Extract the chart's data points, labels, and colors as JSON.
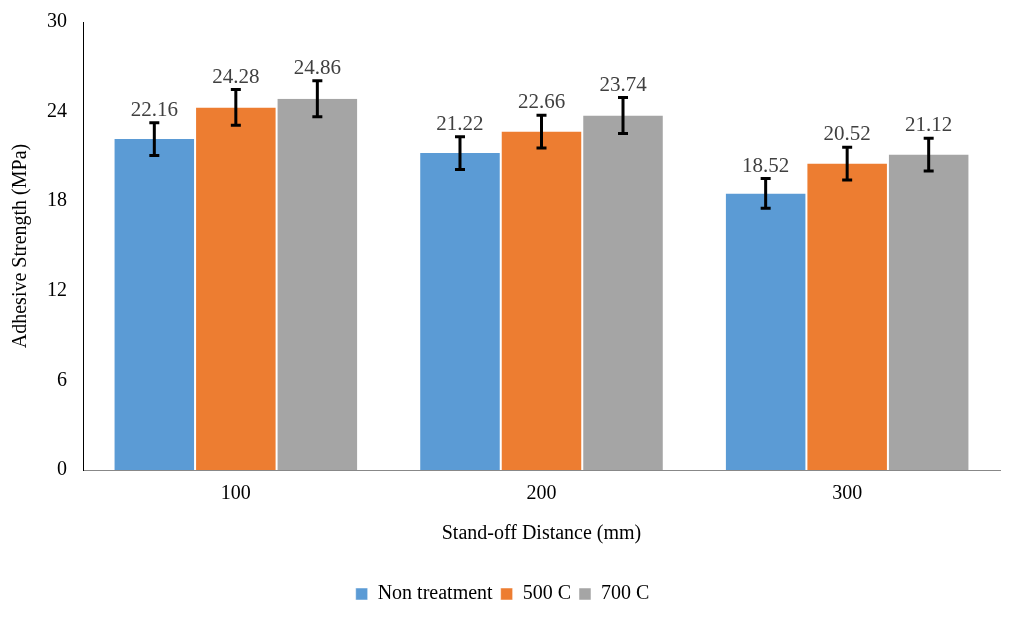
{
  "chart_data": {
    "type": "bar",
    "xlabel": "Stand-off Distance (mm)",
    "ylabel": "Adhesive Strength (MPa)",
    "categories": [
      "100",
      "200",
      "300"
    ],
    "series": [
      {
        "name": "Non treatment",
        "color": "#5b9bd5",
        "values": [
          22.16,
          21.22,
          18.52
        ],
        "errors": [
          1.1,
          1.1,
          1.0
        ]
      },
      {
        "name": "500 C",
        "color": "#ed7d31",
        "values": [
          24.28,
          22.66,
          20.52
        ],
        "errors": [
          1.2,
          1.1,
          1.1
        ]
      },
      {
        "name": "700 C",
        "color": "#a5a5a5",
        "values": [
          24.86,
          23.74,
          21.12
        ],
        "errors": [
          1.2,
          1.2,
          1.1
        ]
      }
    ],
    "ylim": [
      0,
      30
    ],
    "yticks": [
      0,
      6,
      12,
      18,
      24,
      30
    ],
    "grid": false,
    "legend": "bottom",
    "data_labels": true
  }
}
